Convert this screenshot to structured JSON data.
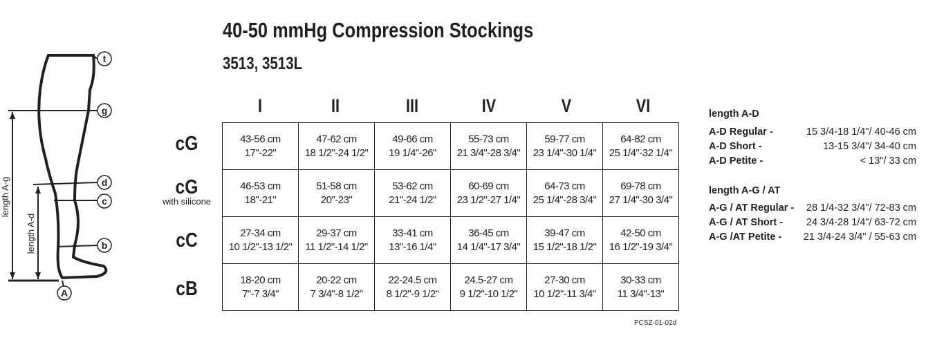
{
  "title": "40-50 mmHg Compression Stockings",
  "subtitle": "3513, 3513L",
  "columns": [
    "I",
    "II",
    "III",
    "IV",
    "V",
    "VI"
  ],
  "rows": [
    {
      "label": "cG",
      "sublabel": "",
      "cells": [
        [
          "43-56 cm",
          "17\"-22\""
        ],
        [
          "47-62 cm",
          "18 1/2\"-24 1/2\""
        ],
        [
          "49-66 cm",
          "19 1/4\"-26\""
        ],
        [
          "55-73 cm",
          "21 3/4\"-28 3/4\""
        ],
        [
          "59-77 cm",
          "23 1/4\"-30 1/4\""
        ],
        [
          "64-82 cm",
          "25 1/4\"-32 1/4\""
        ]
      ]
    },
    {
      "label": "cG",
      "sublabel": "with silicone",
      "cells": [
        [
          "46-53 cm",
          "18\"-21\""
        ],
        [
          "51-58 cm",
          "20\"-23\""
        ],
        [
          "53-62 cm",
          "21\"-24 1/2\""
        ],
        [
          "60-69 cm",
          "23 1/2\"-27 1/4\""
        ],
        [
          "64-73 cm",
          "25 1/4\"-28 3/4\""
        ],
        [
          "69-78 cm",
          "27 1/4\"-30 3/4\""
        ]
      ]
    },
    {
      "label": "cC",
      "sublabel": "",
      "cells": [
        [
          "27-34 cm",
          "10 1/2\"-13 1/2\""
        ],
        [
          "29-37 cm",
          "11 1/2\"-14 1/2\""
        ],
        [
          "33-41 cm",
          "13\"-16 1/4\""
        ],
        [
          "36-45 cm",
          "14 1/4\"-17 3/4\""
        ],
        [
          "39-47 cm",
          "15 1/2\"-18 1/2\""
        ],
        [
          "42-50 cm",
          "16 1/2\"-19 3/4\""
        ]
      ]
    },
    {
      "label": "cB",
      "sublabel": "",
      "cells": [
        [
          "18-20 cm",
          "7\"-7 3/4\""
        ],
        [
          "20-22 cm",
          "7 3/4\"-8 1/2\""
        ],
        [
          "22-24.5 cm",
          "8 1/2\"-9 1/2\""
        ],
        [
          "24.5-27 cm",
          "9 1/2\"-10 1/2\""
        ],
        [
          "27-30 cm",
          "10 1/2\"-11 3/4\""
        ],
        [
          "30-33 cm",
          "11 3/4\"-13\""
        ]
      ]
    }
  ],
  "code": "PCSZ-01-02d",
  "lengths": {
    "ad_heading": "length A-D",
    "ad": [
      {
        "label": "A-D Regular -",
        "value": "15 3/4-18 1/4\"/ 40-46 cm"
      },
      {
        "label": "A-D Short -",
        "value": "13-15 3/4\"/ 34-40 cm"
      },
      {
        "label": "A-D Petite -",
        "value": "< 13\"/ 33 cm"
      }
    ],
    "ag_heading": "length A-G / AT",
    "ag": [
      {
        "label": "A-G / AT Regular -",
        "value": "28 1/4-32 3/4\"/ 72-83 cm"
      },
      {
        "label": "A-G / AT Short -",
        "value": "24 3/4-28 1/4\"/ 63-72 cm"
      },
      {
        "label": "A-G /AT Petite -",
        "value": "21 3/4-24 3/4\" / 55-63 cm"
      }
    ]
  },
  "diagram": {
    "markers": [
      "t",
      "g",
      "d",
      "c",
      "b",
      "A"
    ],
    "length_ag": "length A-g",
    "length_ad": "length A-d"
  }
}
